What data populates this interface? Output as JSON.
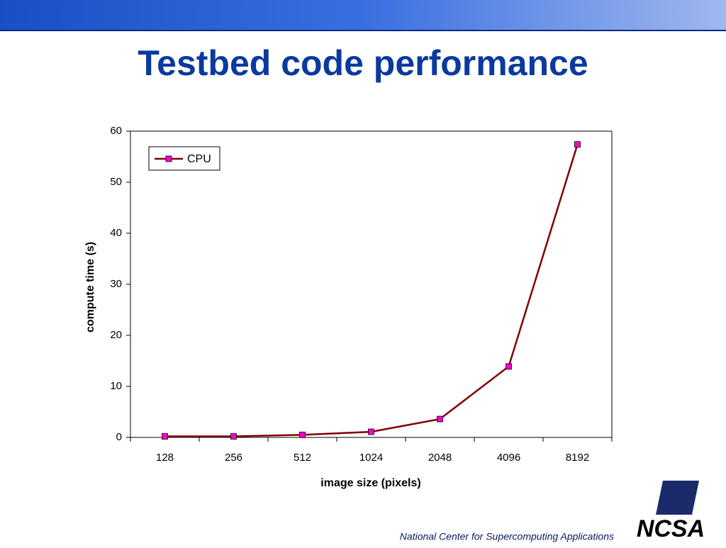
{
  "header": {
    "title": "Testbed code performance"
  },
  "footer": {
    "text": "National Center for Supercomputing Applications",
    "logo": "NCSA"
  },
  "chart_data": {
    "type": "line",
    "x_label": "image size (pixels)",
    "y_label": "compute time (s)",
    "categories": [
      "128",
      "256",
      "512",
      "1024",
      "2048",
      "4096",
      "8192"
    ],
    "series": [
      {
        "name": "CPU",
        "color": "#800000",
        "marker_color": "#ff00cc",
        "values": [
          0.2,
          0.2,
          0.5,
          1.1,
          3.6,
          13.9,
          57.4
        ]
      }
    ],
    "ylim": [
      0,
      60
    ],
    "yticks": [
      0,
      10,
      20,
      30,
      40,
      50,
      60
    ],
    "grid": false,
    "legend": "upper-left"
  }
}
